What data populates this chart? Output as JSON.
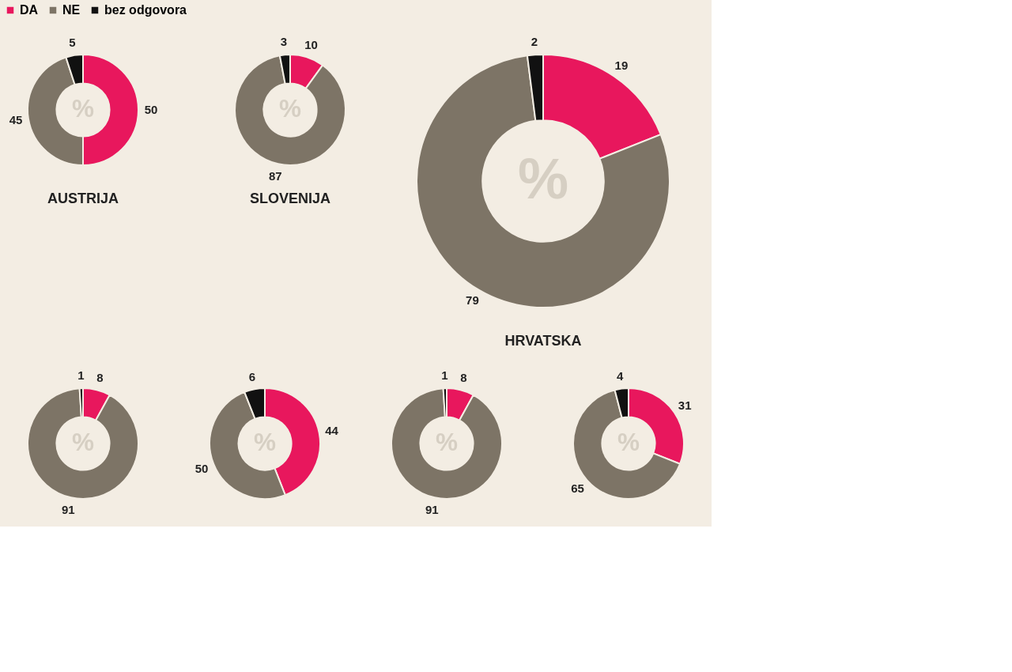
{
  "chart_data": [
    {
      "type": "donut",
      "title": "AUSTRIJA",
      "categories": [
        "DA",
        "NE",
        "bez odgovora"
      ],
      "values": [
        50,
        45,
        5
      ],
      "colors": [
        "#e8175d",
        "#7d7466",
        "#111111"
      ],
      "data_labels": true,
      "annotations": [
        "%"
      ],
      "legend": "top"
    },
    {
      "type": "donut",
      "title": "SLOVENIJA",
      "categories": [
        null,
        null,
        null
      ],
      "values": [
        10,
        87,
        3
      ],
      "colors": [
        "#e8175d",
        "#7d7466",
        "#111111"
      ],
      "data_labels": true,
      "annotations": [
        "%"
      ]
    },
    {
      "type": "donut",
      "title": "HRVATSKA",
      "categories": [
        null,
        null,
        null
      ],
      "values": [
        19,
        79,
        2
      ],
      "colors": [
        "#e8175d",
        "#7d7466",
        "#111111"
      ],
      "data_labels": true,
      "annotations": [
        "%"
      ]
    },
    {
      "type": "donut",
      "categories": [
        null,
        null,
        null
      ],
      "values": [
        8,
        91,
        1
      ],
      "colors": [
        "#e8175d",
        "#7d7466",
        "#111111"
      ],
      "data_labels": true,
      "annotations": [
        "%"
      ]
    },
    {
      "type": "donut",
      "categories": [
        null,
        null,
        null
      ],
      "values": [
        44,
        50,
        6
      ],
      "colors": [
        "#e8175d",
        "#7d7466",
        "#111111"
      ],
      "data_labels": true,
      "annotations": [
        "%"
      ]
    },
    {
      "type": "donut",
      "categories": [
        null,
        null,
        null
      ],
      "values": [
        8,
        91,
        1
      ],
      "colors": [
        "#e8175d",
        "#7d7466",
        "#111111"
      ],
      "data_labels": true,
      "annotations": [
        "%"
      ]
    },
    {
      "type": "donut",
      "categories": [
        null,
        null,
        null
      ],
      "values": [
        31,
        65,
        4
      ],
      "colors": [
        "#e8175d",
        "#7d7466",
        "#111111"
      ],
      "data_labels": true,
      "annotations": [
        "%"
      ]
    }
  ]
}
